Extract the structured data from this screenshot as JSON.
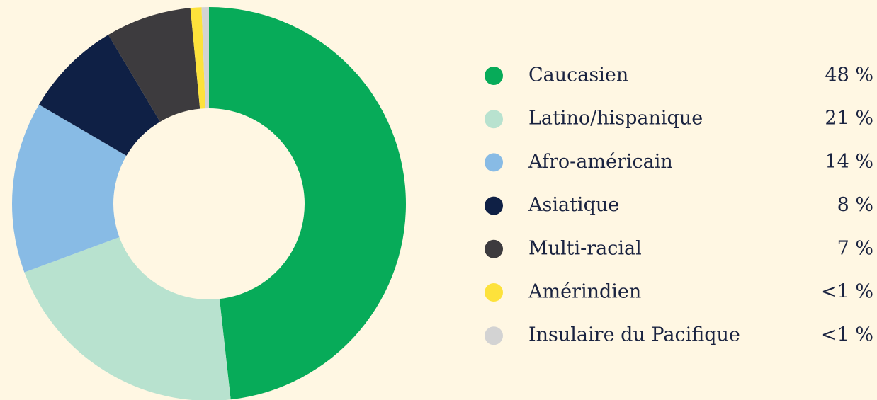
{
  "chart_data": {
    "type": "pie",
    "categories": [
      "Caucasien",
      "Latino/hispanique",
      "Afro-américain",
      "Asiatique",
      "Multi-racial",
      "Amérindien",
      "Insulaire du Pacifique"
    ],
    "values": [
      48,
      21,
      14,
      8,
      7,
      0.9,
      0.6
    ],
    "value_labels": [
      "48 %",
      "21 %",
      "14 %",
      "8 %",
      "7 %",
      "<1 %",
      "<1 %"
    ],
    "colors": [
      "#07ab59",
      "#b8e2cf",
      "#88bbe5",
      "#0f2045",
      "#3d3b3e",
      "#fde23b",
      "#d3d3d3"
    ],
    "donut": true
  }
}
